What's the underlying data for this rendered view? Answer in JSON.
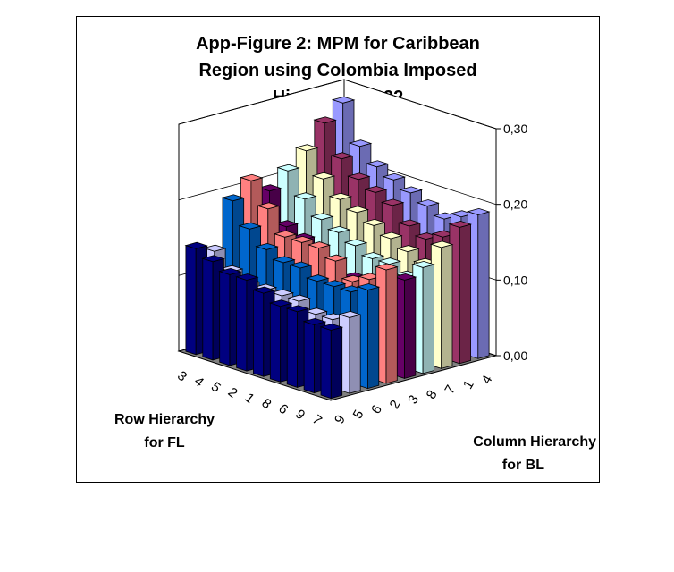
{
  "chart_data": {
    "type": "bar",
    "subtype": "3d-column",
    "title": [
      "App-Figure 2: MPM for Caribbean",
      "Region using Colombia Imposed",
      "Hierarchy, 1992"
    ],
    "xlabel": [
      "Row Hierarchy",
      "for FL"
    ],
    "ylabel": [
      "Column Hierarchy",
      "for BL"
    ],
    "row_categories": [
      "3",
      "4",
      "5",
      "2",
      "1",
      "8",
      "6",
      "9",
      "7"
    ],
    "column_categories": [
      "9",
      "5",
      "6",
      "2",
      "3",
      "8",
      "7",
      "1",
      "4"
    ],
    "zlim": [
      0,
      0.3
    ],
    "z_ticks": [
      "0,00",
      "0,10",
      "0,20",
      "0,30"
    ],
    "z_tick_values": [
      0,
      0.1,
      0.2,
      0.3
    ],
    "grid": true,
    "series": [
      {
        "column": "9",
        "color": "#000080",
        "values": [
          0.14,
          0.13,
          0.12,
          0.12,
          0.11,
          0.1,
          0.1,
          0.09,
          0.09
        ]
      },
      {
        "column": "5",
        "color": "#ccccff",
        "values": [
          0.13,
          0.11,
          0.1,
          0.1,
          0.1,
          0.1,
          0.09,
          0.09,
          0.1
        ]
      },
      {
        "column": "6",
        "color": "#0066cc",
        "values": [
          0.19,
          0.16,
          0.14,
          0.13,
          0.13,
          0.12,
          0.12,
          0.12,
          0.13
        ]
      },
      {
        "column": "2",
        "color": "#ff8080",
        "values": [
          0.21,
          0.18,
          0.15,
          0.15,
          0.15,
          0.14,
          0.12,
          0.13,
          0.15
        ]
      },
      {
        "column": "3",
        "color": "#660066",
        "values": [
          0.19,
          0.15,
          0.14,
          0.12,
          0.1,
          0.11,
          0.1,
          0.11,
          0.13
        ]
      },
      {
        "column": "8",
        "color": "#ccffff",
        "values": [
          0.21,
          0.18,
          0.16,
          0.15,
          0.14,
          0.13,
          0.13,
          0.12,
          0.14
        ]
      },
      {
        "column": "7",
        "color": "#ffffcc",
        "values": [
          0.23,
          0.2,
          0.18,
          0.17,
          0.16,
          0.15,
          0.14,
          0.13,
          0.16
        ]
      },
      {
        "column": "1",
        "color": "#993366",
        "values": [
          0.26,
          0.22,
          0.2,
          0.19,
          0.18,
          0.16,
          0.15,
          0.16,
          0.18
        ]
      },
      {
        "column": "4",
        "color": "#9999ff",
        "values": [
          0.28,
          0.23,
          0.21,
          0.2,
          0.19,
          0.18,
          0.17,
          0.18,
          0.19
        ]
      }
    ],
    "floor_color": "#808080"
  }
}
